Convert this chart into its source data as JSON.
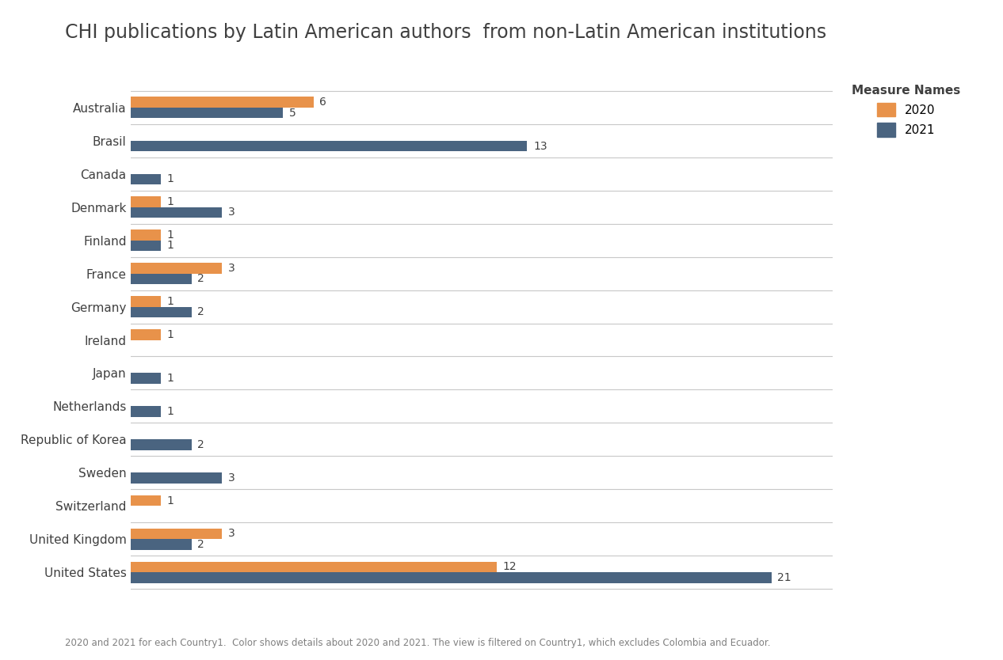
{
  "title": "CHI publications by Latin American authors  from non-Latin American institutions",
  "footnote": "2020 and 2021 for each Country1.  Color shows details about 2020 and 2021. The view is filtered on Country1, which excludes Colombia and Ecuador.",
  "legend_title": "Measure Names",
  "categories": [
    "Australia",
    "Brasil",
    "Canada",
    "Denmark",
    "Finland",
    "France",
    "Germany",
    "Ireland",
    "Japan",
    "Netherlands",
    "Republic of Korea",
    "Sweden",
    "Switzerland",
    "United Kingdom",
    "United States"
  ],
  "values_2020": [
    6,
    0,
    0,
    1,
    1,
    3,
    1,
    1,
    0,
    0,
    0,
    0,
    1,
    3,
    12
  ],
  "values_2021": [
    5,
    13,
    1,
    3,
    1,
    2,
    2,
    0,
    1,
    1,
    2,
    3,
    0,
    2,
    21
  ],
  "color_2020": "#E8924A",
  "color_2021": "#4A6480",
  "background_color": "#FFFFFF",
  "grid_color": "#E0E0E0",
  "separator_color": "#C8C8C8",
  "title_color": "#404040",
  "label_color": "#404040",
  "annotation_color": "#404040",
  "footnote_color": "#808080",
  "title_fontsize": 17,
  "label_fontsize": 11,
  "annotation_fontsize": 10,
  "bar_height": 0.32,
  "xlim": [
    0,
    23
  ]
}
